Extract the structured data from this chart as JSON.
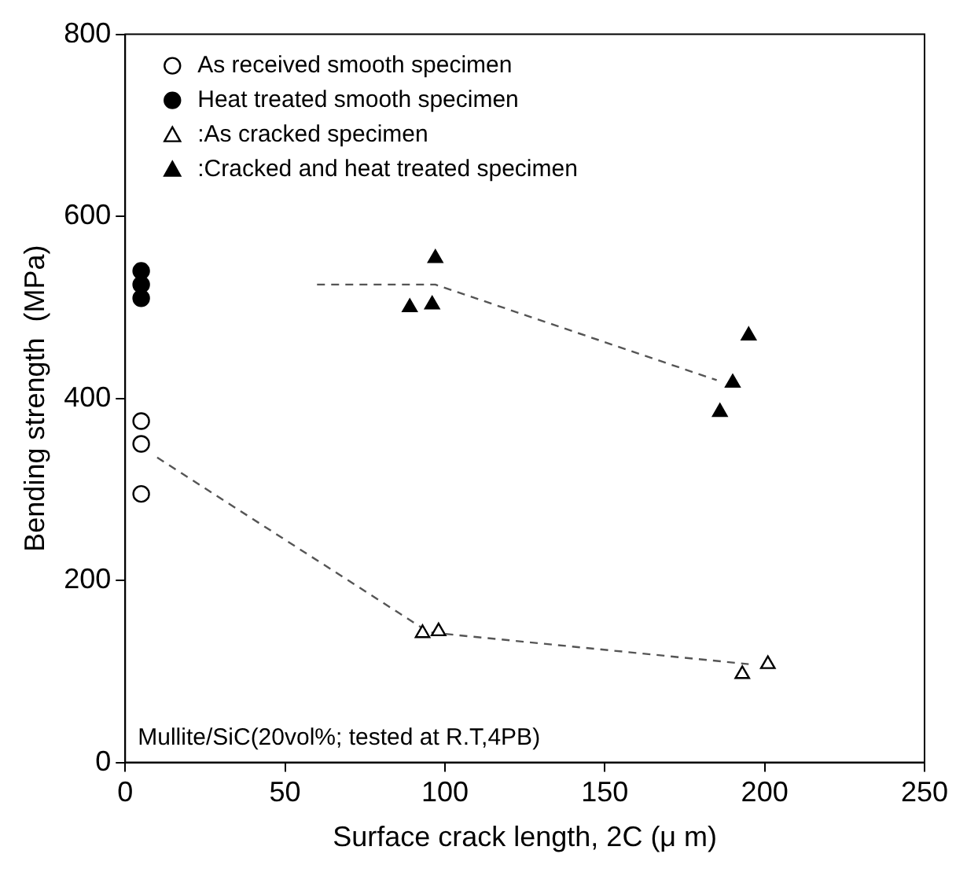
{
  "chart_data": {
    "type": "scatter",
    "xlabel": "Surface crack length, 2C (μ m)",
    "ylabel": "Bending strength  (MPa)",
    "xlim": [
      0,
      250
    ],
    "xticks": [
      0,
      50,
      100,
      150,
      200,
      250
    ],
    "ylim": [
      0,
      800
    ],
    "yticks": [
      0,
      200,
      400,
      600,
      800
    ],
    "grid": false,
    "legend": "top left",
    "annotations": [
      "Mullite/SiC(20vol%; tested at R.T,4PB)"
    ],
    "series": [
      {
        "name": "As received smooth specimen",
        "color": "#000000",
        "marker": "circle",
        "x": [
          5,
          5,
          5
        ],
        "values": [
          375,
          350,
          295
        ]
      },
      {
        "name": "Heat treated smooth specimen",
        "color": "#000000",
        "marker": "circle",
        "x": [
          5,
          5,
          5
        ],
        "values": [
          540,
          525,
          510
        ]
      },
      {
        "name": ":As cracked specimen",
        "color": "#000000",
        "marker": "triangle",
        "x": [
          93,
          98,
          193,
          201
        ],
        "values": [
          142,
          144,
          97,
          108
        ]
      },
      {
        "name": ":Cracked and heat treated specimen",
        "color": "#000000",
        "marker": "triangle",
        "x": [
          89,
          96,
          97,
          186,
          190,
          195
        ],
        "values": [
          500,
          503,
          554,
          385,
          417,
          469
        ]
      },
      {
        "type": "line",
        "color": "#555555",
        "line_style": "dashed",
        "marker": "none",
        "x": [
          10,
          95,
          195
        ],
        "values": [
          335,
          143,
          108
        ]
      },
      {
        "type": "line",
        "color": "#555555",
        "line_style": "dashed",
        "marker": "none",
        "x": [
          60,
          97,
          185
        ],
        "values": [
          525,
          525,
          420
        ]
      }
    ]
  }
}
